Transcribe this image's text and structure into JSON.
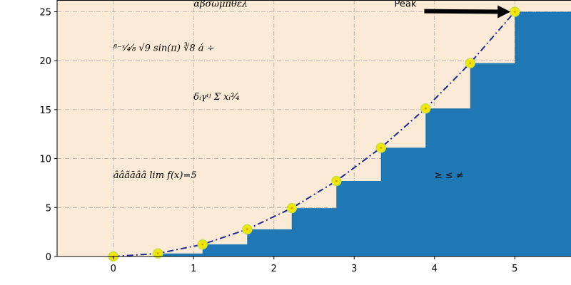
{
  "chart_data": {
    "type": "bar",
    "xlim": [
      -0.7,
      5.7
    ],
    "ylim": [
      0,
      26.2
    ],
    "x_ticks": [
      0,
      1,
      2,
      3,
      4,
      5
    ],
    "y_ticks": [
      0,
      5,
      10,
      15,
      20,
      25
    ],
    "grid": true,
    "background": "#fbebd6",
    "bar_color": "#1f77b4",
    "line_color": "#1f2a9a",
    "marker_color": "#f2e600",
    "bars": {
      "x": [
        0,
        0.556,
        1.111,
        1.667,
        2.222,
        2.778,
        3.333,
        3.889,
        4.444,
        5.0
      ],
      "values": [
        0.0,
        0.309,
        1.235,
        2.778,
        4.938,
        7.716,
        11.111,
        15.123,
        19.753,
        25.0
      ],
      "width": 0.8
    },
    "series": [
      {
        "style": "dash-dot",
        "x": [
          0,
          0.556,
          1.111,
          1.667,
          2.222,
          2.778,
          3.333,
          3.889,
          4.444,
          5.0
        ],
        "y": [
          0.0,
          0.309,
          1.235,
          2.778,
          4.938,
          7.716,
          11.111,
          15.123,
          19.753,
          25.0
        ]
      }
    ],
    "annotations": [
      {
        "text": "αβσωμπθελ",
        "x": 1.0,
        "y": 25.5
      },
      {
        "text": "⁸⁻ˣ⁄₄⁄₈ √9 sin(π) ∛8 á ÷",
        "x": 0.0,
        "y": 21.0
      },
      {
        "text": "δᵢγⁱʲ Σ xᵢ³⁄₄",
        "x": 1.0,
        "y": 16.0
      },
      {
        "text": "ȃâãāȃȃ lim f(x)=5",
        "x": 0.0,
        "y": 8.0
      },
      {
        "text": "≥ ≤ ≠",
        "x": 4.0,
        "y": 8.0
      }
    ],
    "peak": {
      "label": "Peak",
      "text_x": 3.5,
      "text_y": 25.5,
      "x": 5.0,
      "y": 25.0
    }
  }
}
